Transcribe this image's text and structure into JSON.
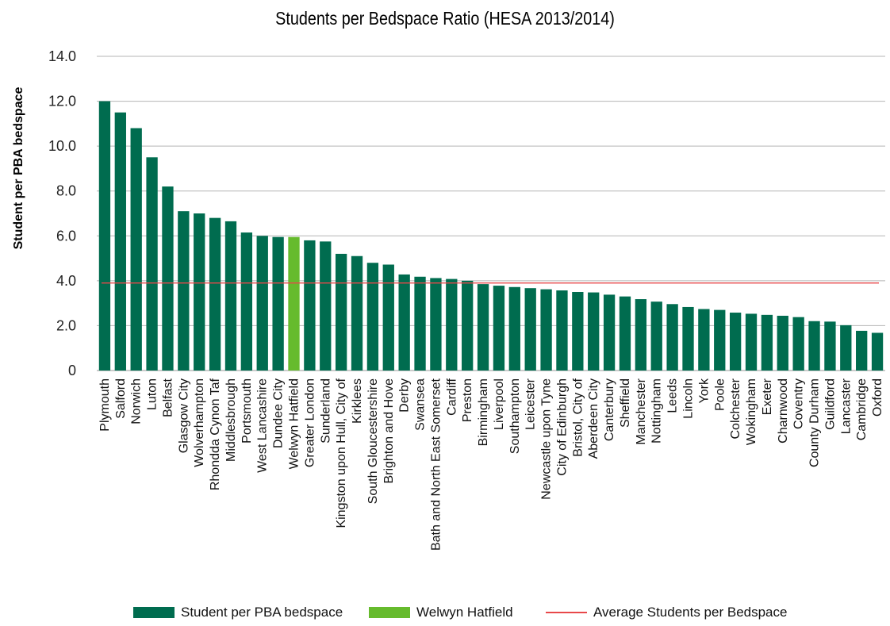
{
  "chart_data": {
    "type": "bar",
    "title": "Students per Bedspace Ratio (HESA 2013/2014)",
    "ylabel": "Student per PBA bedspace",
    "xlabel": "",
    "ylim": [
      0,
      14
    ],
    "yticks": [
      "0",
      "2.0",
      "4.0",
      "6.0",
      "8.0",
      "10.0",
      "12.0",
      "14.0"
    ],
    "grid": true,
    "legend_position": "bottom",
    "categories": [
      "Plymouth",
      "Salford",
      "Norwich",
      "Luton",
      "Belfast",
      "Glasgow City",
      "Wolverhampton",
      "Rhondda Cynon Taf",
      "Middlesbrough",
      "Portsmouth",
      "West Lancashire",
      "Dundee City",
      "Welwyn Hatfield",
      "Greater London",
      "Sunderland",
      "Kingston upon Hull, City of",
      "Kirklees",
      "South Gloucestershire",
      "Brighton and Hove",
      "Derby",
      "Swansea",
      "Bath and North East Somerset",
      "Cardiff",
      "Preston",
      "Birmingham",
      "Liverpool",
      "Southampton",
      "Leicester",
      "Newcastle upon Tyne",
      "City of Edinburgh",
      "Bristol, City of",
      "Aberdeen City",
      "Canterbury",
      "Sheffield",
      "Manchester",
      "Nottingham",
      "Leeds",
      "Lincoln",
      "York",
      "Poole",
      "Colchester",
      "Wokingham",
      "Exeter",
      "Charnwood",
      "Coventry",
      "County Durham",
      "Guildford",
      "Lancaster",
      "Cambridge",
      "Oxford"
    ],
    "series": [
      {
        "name": "Student per PBA bedspace",
        "color": "#006c4f",
        "values": [
          12.0,
          11.5,
          10.8,
          9.5,
          8.2,
          7.1,
          7.0,
          6.8,
          6.65,
          6.15,
          6.0,
          5.95,
          5.95,
          5.8,
          5.75,
          5.2,
          5.1,
          4.8,
          4.72,
          4.28,
          4.18,
          4.12,
          4.08,
          4.0,
          3.85,
          3.78,
          3.72,
          3.67,
          3.62,
          3.57,
          3.5,
          3.48,
          3.38,
          3.3,
          3.18,
          3.07,
          2.96,
          2.83,
          2.74,
          2.7,
          2.58,
          2.53,
          2.48,
          2.44,
          2.38,
          2.2,
          2.18,
          2.02,
          1.77,
          1.68
        ]
      },
      {
        "name": "Welwyn Hatfield",
        "color": "#66bb2d",
        "highlight_category": "Welwyn Hatfield"
      },
      {
        "name": "Average Students per Bedspace",
        "type": "line",
        "color": "#e8484a",
        "value": 3.9
      }
    ]
  }
}
